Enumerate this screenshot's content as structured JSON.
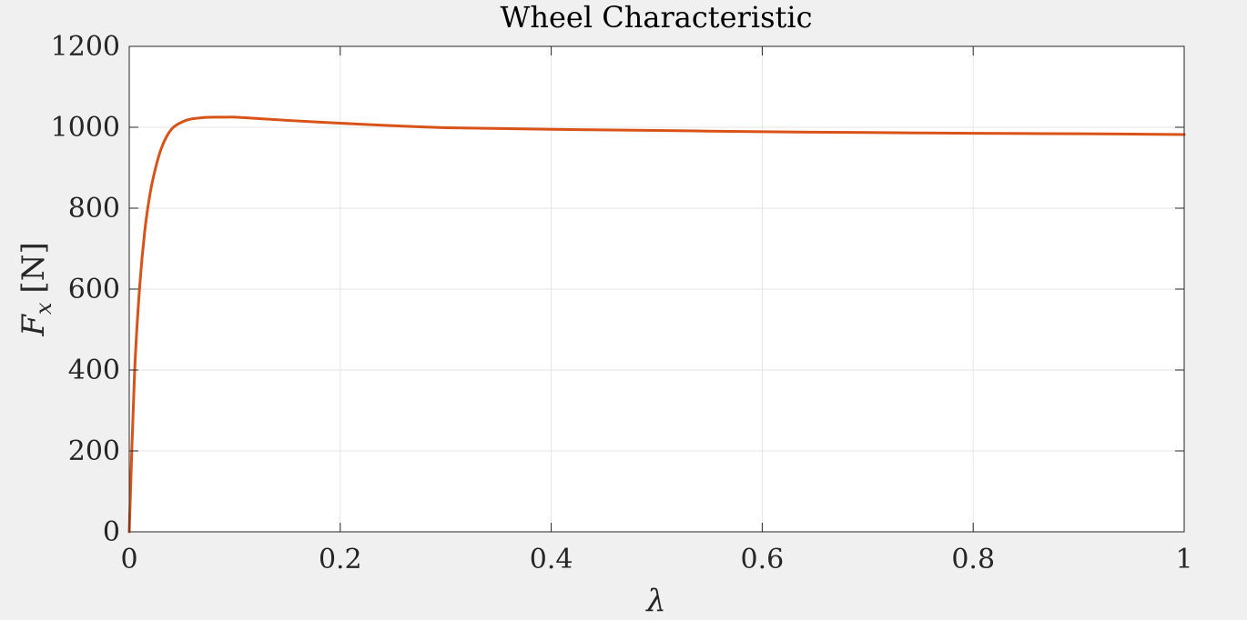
{
  "chart_data": {
    "type": "line",
    "title": "Wheel Characteristic",
    "xlabel": "λ",
    "ylabel": {
      "symbol": "F",
      "subscript": "x",
      "unit": "[N]"
    },
    "xlim": [
      0,
      1
    ],
    "ylim": [
      0,
      1200
    ],
    "xticks": [
      0,
      0.2,
      0.4,
      0.6,
      0.8,
      1
    ],
    "xtick_labels": [
      "0",
      "0.2",
      "0.4",
      "0.6",
      "0.8",
      "1"
    ],
    "yticks": [
      0,
      200,
      400,
      600,
      800,
      1000,
      1200
    ],
    "ytick_labels": [
      "0",
      "200",
      "400",
      "600",
      "800",
      "1000",
      "1200"
    ],
    "grid": true,
    "series": [
      {
        "color": "#d95319",
        "x": [
          0,
          0.005,
          0.01,
          0.015,
          0.02,
          0.025,
          0.03,
          0.035,
          0.04,
          0.045,
          0.05,
          0.055,
          0.06,
          0.07,
          0.08,
          0.09,
          0.1,
          0.12,
          0.15,
          0.2,
          0.25,
          0.3,
          0.4,
          0.5,
          0.6,
          0.7,
          0.8,
          0.9,
          1.0
        ],
        "y": [
          0,
          390,
          610,
          750,
          840,
          900,
          945,
          975,
          995,
          1006,
          1013,
          1018,
          1021,
          1024,
          1025,
          1025,
          1025,
          1022,
          1017,
          1010,
          1004,
          999,
          995,
          992,
          989,
          987,
          985,
          984,
          982
        ]
      }
    ]
  }
}
